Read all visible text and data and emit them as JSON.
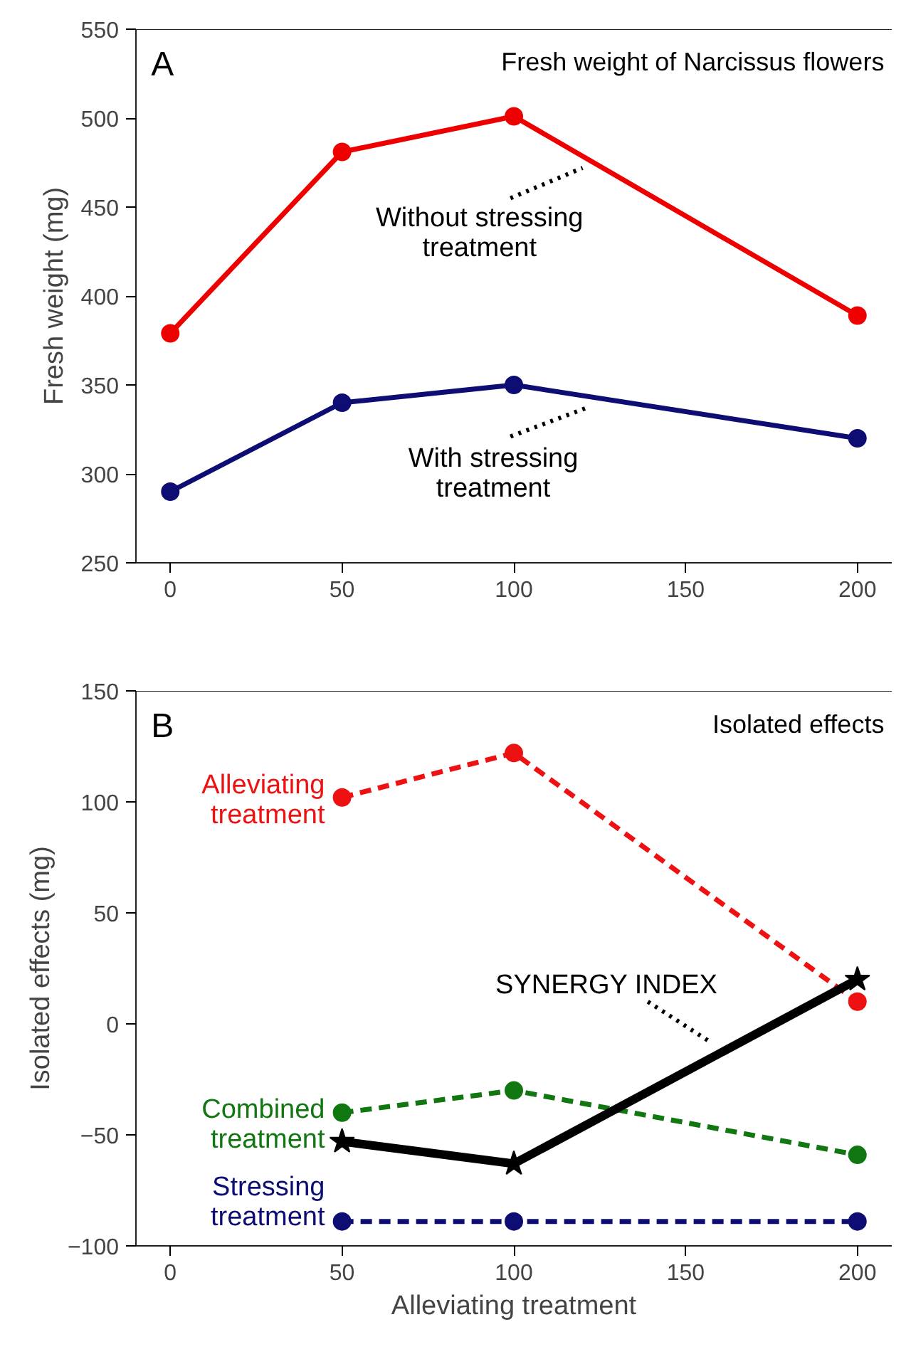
{
  "chart_data": [
    {
      "type": "line",
      "title": "Fresh weight of Narcissus flowers",
      "ylabel": "Fresh weight (mg)",
      "annotations": [
        "A"
      ],
      "x": [
        0,
        50,
        100,
        200
      ],
      "xlim": [
        -10,
        210
      ],
      "xticks": [
        0,
        50,
        100,
        150,
        200
      ],
      "ylim": [
        250,
        550
      ],
      "yticks": [
        250,
        300,
        350,
        400,
        450,
        500,
        550
      ],
      "grid": false,
      "legend": false,
      "marker": "circle",
      "line_style": "solid",
      "series": [
        {
          "name": "Without stressing treatment",
          "color": "#ee0000",
          "values": [
            379,
            481,
            501,
            389
          ]
        },
        {
          "name": "With stressing treatment",
          "color": "#0d0d73",
          "values": [
            290,
            340,
            350,
            320
          ]
        }
      ]
    },
    {
      "type": "line",
      "title": "Isolated effects",
      "xlabel": "Alleviating treatment",
      "ylabel": "Isolated effects (mg)",
      "annotations": [
        "B"
      ],
      "x": [
        50,
        100,
        200
      ],
      "xlim": [
        -10,
        210
      ],
      "xticks": [
        0,
        50,
        100,
        150,
        200
      ],
      "ylim": [
        -100,
        150
      ],
      "yticks": [
        -100,
        -50,
        0,
        50,
        100,
        150
      ],
      "grid": false,
      "legend": false,
      "marker": "circle",
      "line_style": "dashed",
      "series": [
        {
          "name": "Alleviating treatment",
          "color": "#ee1111",
          "values": [
            102,
            122,
            10
          ]
        },
        {
          "name": "Combined treatment",
          "color": "#117711",
          "values": [
            -40,
            -30,
            -59
          ]
        },
        {
          "name": "Stressing treatment",
          "color": "#0d0d73",
          "values": [
            -89,
            -89,
            -89
          ]
        },
        {
          "name": "SYNERGY INDEX",
          "color": "#000000",
          "values": [
            -53,
            -63,
            20
          ],
          "marker": "star",
          "line_style": "solid"
        }
      ]
    }
  ]
}
